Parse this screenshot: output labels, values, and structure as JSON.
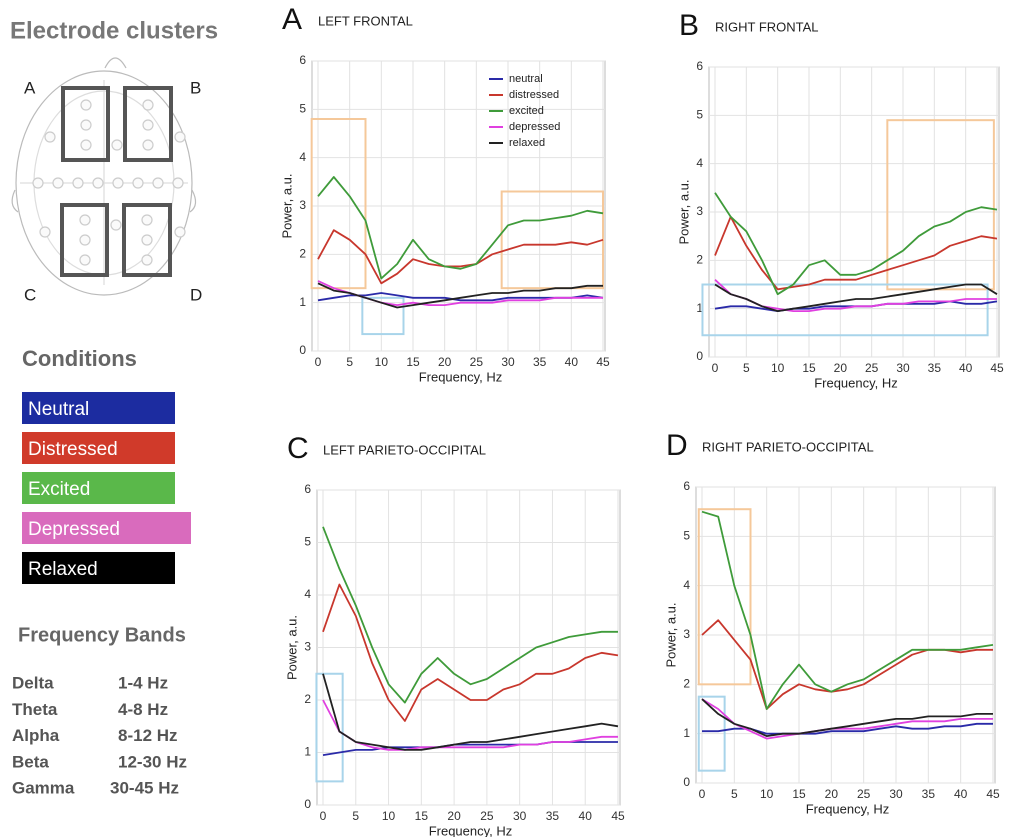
{
  "electrode_clusters": {
    "title": "Electrode clusters",
    "labels": [
      "A",
      "B",
      "C",
      "D"
    ]
  },
  "conditions": {
    "title": "Conditions",
    "items": [
      {
        "label": "Neutral",
        "color": "#1c2ca0"
      },
      {
        "label": "Distressed",
        "color": "#d03a2a"
      },
      {
        "label": "Excited",
        "color": "#5ab84a"
      },
      {
        "label": "Depressed",
        "color": "#d96bbd"
      },
      {
        "label": "Relaxed",
        "color": "#000000"
      }
    ]
  },
  "frequency_bands": {
    "title": "Frequency Bands",
    "rows": [
      [
        "Delta",
        "1-4 Hz"
      ],
      [
        "Theta",
        "4-8 Hz"
      ],
      [
        "Alpha",
        "8-12 Hz"
      ],
      [
        "Beta",
        "12-30 Hz"
      ],
      [
        "Gamma",
        "30-45 Hz"
      ]
    ]
  },
  "chart_data": [
    {
      "type": "line",
      "panel": "A",
      "title": "LEFT FRONTAL",
      "xlabel": "Frequency, Hz",
      "ylabel": "Power, a.u.",
      "xlim": [
        0,
        45
      ],
      "ylim": [
        0,
        6
      ],
      "xticks": [
        0,
        5,
        10,
        15,
        20,
        25,
        30,
        35,
        40,
        45
      ],
      "yticks": [
        0,
        1,
        2,
        3,
        4,
        5,
        6
      ],
      "grid": true,
      "legend": "upper right",
      "x": [
        0,
        2.5,
        5,
        7.5,
        10,
        12.5,
        15,
        17.5,
        20,
        22.5,
        25,
        27.5,
        30,
        32.5,
        35,
        37.5,
        40,
        42.5,
        45
      ],
      "series": [
        {
          "name": "neutral",
          "color": "#2a2aa8",
          "values": [
            1.05,
            1.1,
            1.15,
            1.15,
            1.2,
            1.15,
            1.1,
            1.1,
            1.1,
            1.05,
            1.05,
            1.05,
            1.1,
            1.1,
            1.1,
            1.1,
            1.1,
            1.15,
            1.1
          ]
        },
        {
          "name": "distressed",
          "color": "#c8372d",
          "values": [
            1.9,
            2.5,
            2.3,
            2.0,
            1.4,
            1.6,
            1.9,
            1.8,
            1.75,
            1.75,
            1.8,
            2.0,
            2.1,
            2.2,
            2.2,
            2.2,
            2.25,
            2.2,
            2.3
          ]
        },
        {
          "name": "excited",
          "color": "#3f9b3a",
          "values": [
            3.2,
            3.6,
            3.2,
            2.7,
            1.5,
            1.8,
            2.3,
            1.9,
            1.75,
            1.7,
            1.8,
            2.2,
            2.6,
            2.7,
            2.7,
            2.75,
            2.8,
            2.9,
            2.85
          ]
        },
        {
          "name": "depressed",
          "color": "#e040e0",
          "values": [
            1.45,
            1.3,
            1.2,
            1.1,
            1.0,
            0.95,
            1.0,
            0.95,
            0.95,
            1.0,
            1.0,
            1.0,
            1.05,
            1.05,
            1.05,
            1.1,
            1.1,
            1.1,
            1.1
          ]
        },
        {
          "name": "relaxed",
          "color": "#222222",
          "values": [
            1.4,
            1.25,
            1.2,
            1.1,
            1.0,
            0.9,
            0.95,
            1.0,
            1.05,
            1.1,
            1.15,
            1.2,
            1.2,
            1.25,
            1.25,
            1.3,
            1.3,
            1.35,
            1.35
          ]
        }
      ],
      "highlights": [
        {
          "color": "#f5c89a",
          "x": [
            -1,
            7.5
          ],
          "y": [
            1.3,
            4.8
          ]
        },
        {
          "color": "#f5c89a",
          "x": [
            29,
            45
          ],
          "y": [
            1.3,
            3.3
          ]
        },
        {
          "color": "#a8d4ea",
          "x": [
            7,
            13.5
          ],
          "y": [
            0.35,
            1.1
          ]
        }
      ]
    },
    {
      "type": "line",
      "panel": "B",
      "title": "RIGHT FRONTAL",
      "xlabel": "Frequency, Hz",
      "ylabel": "Power, a.u.",
      "xlim": [
        0,
        45
      ],
      "ylim": [
        0,
        6
      ],
      "xticks": [
        0,
        5,
        10,
        15,
        20,
        25,
        30,
        35,
        40,
        45
      ],
      "yticks": [
        0,
        1,
        2,
        3,
        4,
        5,
        6
      ],
      "grid": true,
      "x": [
        0,
        2.5,
        5,
        7.5,
        10,
        12.5,
        15,
        17.5,
        20,
        22.5,
        25,
        27.5,
        30,
        32.5,
        35,
        37.5,
        40,
        42.5,
        45
      ],
      "series": [
        {
          "color": "#2a2aa8",
          "values": [
            1.0,
            1.05,
            1.05,
            1.0,
            0.95,
            1.0,
            1.0,
            1.05,
            1.05,
            1.05,
            1.05,
            1.1,
            1.1,
            1.1,
            1.1,
            1.15,
            1.1,
            1.1,
            1.15
          ]
        },
        {
          "color": "#c8372d",
          "values": [
            2.1,
            2.9,
            2.3,
            1.8,
            1.4,
            1.45,
            1.5,
            1.6,
            1.6,
            1.6,
            1.7,
            1.8,
            1.9,
            2.0,
            2.1,
            2.3,
            2.4,
            2.5,
            2.45
          ]
        },
        {
          "color": "#3f9b3a",
          "values": [
            3.4,
            2.9,
            2.6,
            2.0,
            1.3,
            1.5,
            1.9,
            2.0,
            1.7,
            1.7,
            1.8,
            2.0,
            2.2,
            2.5,
            2.7,
            2.8,
            3.0,
            3.1,
            3.05
          ]
        },
        {
          "color": "#e040e0",
          "values": [
            1.6,
            1.3,
            1.2,
            1.05,
            1.0,
            0.95,
            0.95,
            1.0,
            1.0,
            1.05,
            1.05,
            1.1,
            1.1,
            1.15,
            1.15,
            1.15,
            1.2,
            1.2,
            1.2
          ]
        },
        {
          "color": "#222222",
          "values": [
            1.5,
            1.3,
            1.2,
            1.05,
            0.95,
            1.0,
            1.05,
            1.1,
            1.15,
            1.2,
            1.2,
            1.25,
            1.3,
            1.35,
            1.4,
            1.45,
            1.5,
            1.5,
            1.3
          ]
        }
      ],
      "highlights": [
        {
          "color": "#f5c89a",
          "x": [
            27.5,
            44.5
          ],
          "y": [
            1.4,
            4.9
          ]
        },
        {
          "color": "#a8d4ea",
          "x": [
            -2,
            43.5
          ],
          "y": [
            0.45,
            1.5
          ]
        }
      ]
    },
    {
      "type": "line",
      "panel": "C",
      "title": "LEFT PARIETO-OCCIPITAL",
      "xlabel": "Frequency, Hz",
      "ylabel": "Power, a.u.",
      "xlim": [
        0,
        45
      ],
      "ylim": [
        0,
        6
      ],
      "xticks": [
        0,
        5,
        10,
        15,
        20,
        25,
        30,
        35,
        40,
        45
      ],
      "yticks": [
        0,
        1,
        2,
        3,
        4,
        5,
        6
      ],
      "grid": true,
      "x": [
        0,
        2.5,
        5,
        7.5,
        10,
        12.5,
        15,
        17.5,
        20,
        22.5,
        25,
        27.5,
        30,
        32.5,
        35,
        37.5,
        40,
        42.5,
        45
      ],
      "series": [
        {
          "color": "#2a2aa8",
          "values": [
            0.95,
            1.0,
            1.05,
            1.05,
            1.1,
            1.1,
            1.1,
            1.1,
            1.15,
            1.15,
            1.15,
            1.15,
            1.15,
            1.15,
            1.2,
            1.2,
            1.2,
            1.2,
            1.2
          ]
        },
        {
          "color": "#c8372d",
          "values": [
            3.3,
            4.2,
            3.6,
            2.7,
            2.0,
            1.6,
            2.2,
            2.4,
            2.2,
            2.0,
            2.0,
            2.2,
            2.3,
            2.5,
            2.5,
            2.6,
            2.8,
            2.9,
            2.85
          ]
        },
        {
          "color": "#3f9b3a",
          "values": [
            5.3,
            4.5,
            3.8,
            3.0,
            2.3,
            1.95,
            2.5,
            2.8,
            2.5,
            2.3,
            2.4,
            2.6,
            2.8,
            3.0,
            3.1,
            3.2,
            3.25,
            3.3,
            3.3
          ]
        },
        {
          "color": "#e040e0",
          "values": [
            2.0,
            1.4,
            1.2,
            1.1,
            1.05,
            1.05,
            1.1,
            1.1,
            1.1,
            1.1,
            1.1,
            1.1,
            1.15,
            1.15,
            1.2,
            1.2,
            1.25,
            1.3,
            1.3
          ]
        },
        {
          "color": "#222222",
          "values": [
            2.5,
            1.4,
            1.2,
            1.15,
            1.1,
            1.05,
            1.05,
            1.1,
            1.15,
            1.2,
            1.2,
            1.25,
            1.3,
            1.35,
            1.4,
            1.45,
            1.5,
            1.55,
            1.5
          ]
        }
      ],
      "highlights": [
        {
          "color": "#a8d4ea",
          "x": [
            -1,
            3
          ],
          "y": [
            0.45,
            2.5
          ]
        }
      ]
    },
    {
      "type": "line",
      "panel": "D",
      "title": "RIGHT PARIETO-OCCIPITAL",
      "xlabel": "Frequency, Hz",
      "ylabel": "Power, a.u.",
      "xlim": [
        0,
        45
      ],
      "ylim": [
        0,
        6
      ],
      "xticks": [
        0,
        5,
        10,
        15,
        20,
        25,
        30,
        35,
        40,
        45
      ],
      "yticks": [
        0,
        1,
        2,
        3,
        4,
        5,
        6
      ],
      "grid": true,
      "x": [
        0,
        2.5,
        5,
        7.5,
        10,
        12.5,
        15,
        17.5,
        20,
        22.5,
        25,
        27.5,
        30,
        32.5,
        35,
        37.5,
        40,
        42.5,
        45
      ],
      "series": [
        {
          "color": "#2a2aa8",
          "values": [
            1.05,
            1.05,
            1.1,
            1.1,
            1.0,
            1.0,
            1.0,
            1.0,
            1.05,
            1.05,
            1.05,
            1.1,
            1.15,
            1.1,
            1.1,
            1.15,
            1.15,
            1.2,
            1.2
          ]
        },
        {
          "color": "#c8372d",
          "values": [
            3.0,
            3.3,
            2.9,
            2.5,
            1.5,
            1.8,
            2.0,
            1.9,
            1.85,
            1.9,
            2.0,
            2.2,
            2.4,
            2.6,
            2.7,
            2.7,
            2.65,
            2.7,
            2.7
          ]
        },
        {
          "color": "#3f9b3a",
          "values": [
            5.5,
            5.4,
            4.0,
            3.0,
            1.5,
            2.0,
            2.4,
            2.0,
            1.85,
            2.0,
            2.1,
            2.3,
            2.5,
            2.7,
            2.7,
            2.7,
            2.7,
            2.75,
            2.8
          ]
        },
        {
          "color": "#e040e0",
          "values": [
            1.7,
            1.5,
            1.2,
            1.05,
            0.9,
            0.95,
            1.0,
            1.05,
            1.1,
            1.1,
            1.1,
            1.15,
            1.2,
            1.25,
            1.25,
            1.25,
            1.3,
            1.3,
            1.3
          ]
        },
        {
          "color": "#222222",
          "values": [
            1.7,
            1.4,
            1.2,
            1.1,
            0.95,
            1.0,
            1.0,
            1.05,
            1.1,
            1.15,
            1.2,
            1.25,
            1.3,
            1.3,
            1.35,
            1.35,
            1.35,
            1.4,
            1.4
          ]
        }
      ],
      "highlights": [
        {
          "color": "#f5c89a",
          "x": [
            -0.5,
            7.5
          ],
          "y": [
            2.0,
            5.55
          ]
        },
        {
          "color": "#a8d4ea",
          "x": [
            -0.5,
            3.5
          ],
          "y": [
            0.25,
            1.75
          ]
        }
      ]
    }
  ]
}
